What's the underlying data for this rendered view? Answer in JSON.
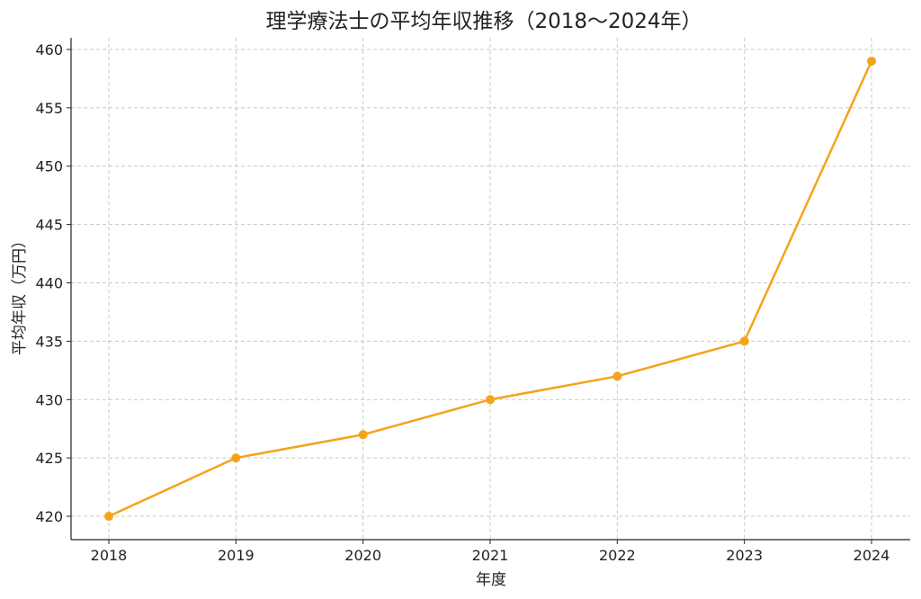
{
  "chart_data": {
    "type": "line",
    "title": "理学療法士の平均年収推移（2018〜2024年）",
    "xlabel": "年度",
    "ylabel": "平均年収（万円）",
    "categories": [
      "2018",
      "2019",
      "2020",
      "2021",
      "2022",
      "2023",
      "2024"
    ],
    "series": [
      {
        "values": [
          420,
          425,
          427,
          430,
          432,
          435,
          459
        ],
        "color": "#f5a31a",
        "marker": "circle"
      }
    ],
    "ylim": [
      418,
      461
    ],
    "yticks": [
      420,
      425,
      430,
      435,
      440,
      445,
      450,
      455,
      460
    ],
    "grid": true,
    "legend": "none"
  }
}
